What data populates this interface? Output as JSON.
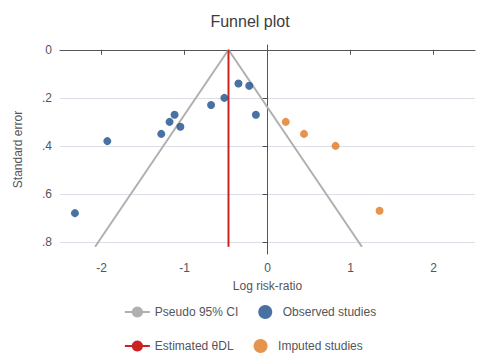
{
  "chart_data": {
    "type": "scatter",
    "title": "Funnel plot",
    "xlabel": "Log risk-ratio",
    "ylabel": "Standard error",
    "xlim": [
      -2.5,
      2.5
    ],
    "ylim": [
      0.85,
      -0.02
    ],
    "xticks": [
      -2,
      -1,
      0,
      1,
      2
    ],
    "yticks": [
      0,
      {
        "value": 0.2,
        "label": ".2"
      },
      {
        "value": 0.4,
        "label": ".4"
      },
      {
        "value": 0.6,
        "label": ".6"
      },
      {
        "value": 0.8,
        "label": ".8"
      }
    ],
    "grid": "y",
    "legend": "bottom",
    "series": [
      {
        "name": "Pseudo 95% CI",
        "type": "line",
        "color": "#b0b0b0",
        "x": [
          -2.0772,
          -0.47,
          1.1372
        ],
        "y": [
          0.82,
          0,
          0.82
        ]
      },
      {
        "name": "Observed studies",
        "type": "scatter",
        "color": "#1c4e8a",
        "x": [
          -2.32,
          -1.93,
          -1.28,
          -1.18,
          -1.12,
          -1.05,
          -0.68,
          -0.52,
          -0.35,
          -0.22,
          -0.14
        ],
        "y": [
          0.68,
          0.38,
          0.35,
          0.3,
          0.27,
          0.32,
          0.23,
          0.2,
          0.14,
          0.15,
          0.27
        ]
      },
      {
        "name": "Estimated θDL",
        "type": "line",
        "color": "#cc2222",
        "x": [
          -0.47,
          -0.47
        ],
        "y": [
          0,
          0.82
        ]
      },
      {
        "name": "Imputed studies",
        "type": "scatter",
        "color": "#e07820",
        "x": [
          0.22,
          0.44,
          0.82,
          1.35
        ],
        "y": [
          0.3,
          0.35,
          0.4,
          0.67
        ]
      }
    ]
  }
}
